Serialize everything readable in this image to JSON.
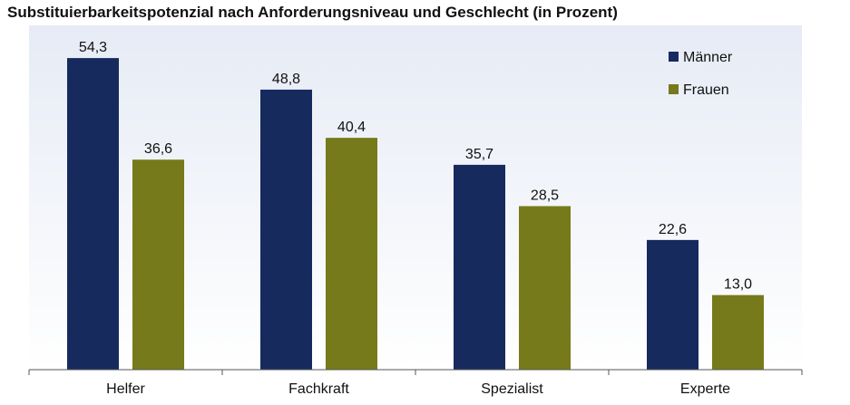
{
  "chart_data": {
    "type": "bar",
    "title": "Substituierbarkeitspotenzial nach Anforderungsniveau und Geschlecht (in Prozent)",
    "categories": [
      "Helfer",
      "Fachkraft",
      "Spezialist",
      "Experte"
    ],
    "series": [
      {
        "name": "Männer",
        "values": [
          54.3,
          48.8,
          35.7,
          22.6
        ],
        "labels": [
          "54,3",
          "48,8",
          "35,7",
          "22,6"
        ],
        "color": "#162a5e"
      },
      {
        "name": "Frauen",
        "values": [
          36.6,
          40.4,
          28.5,
          13.0
        ],
        "labels": [
          "36,6",
          "40,4",
          "28,5",
          "13,0"
        ],
        "color": "#767a1a"
      }
    ],
    "ylim": [
      0,
      60
    ],
    "grid": false,
    "legend": "top-right",
    "plot_background": "#dce3f2"
  }
}
